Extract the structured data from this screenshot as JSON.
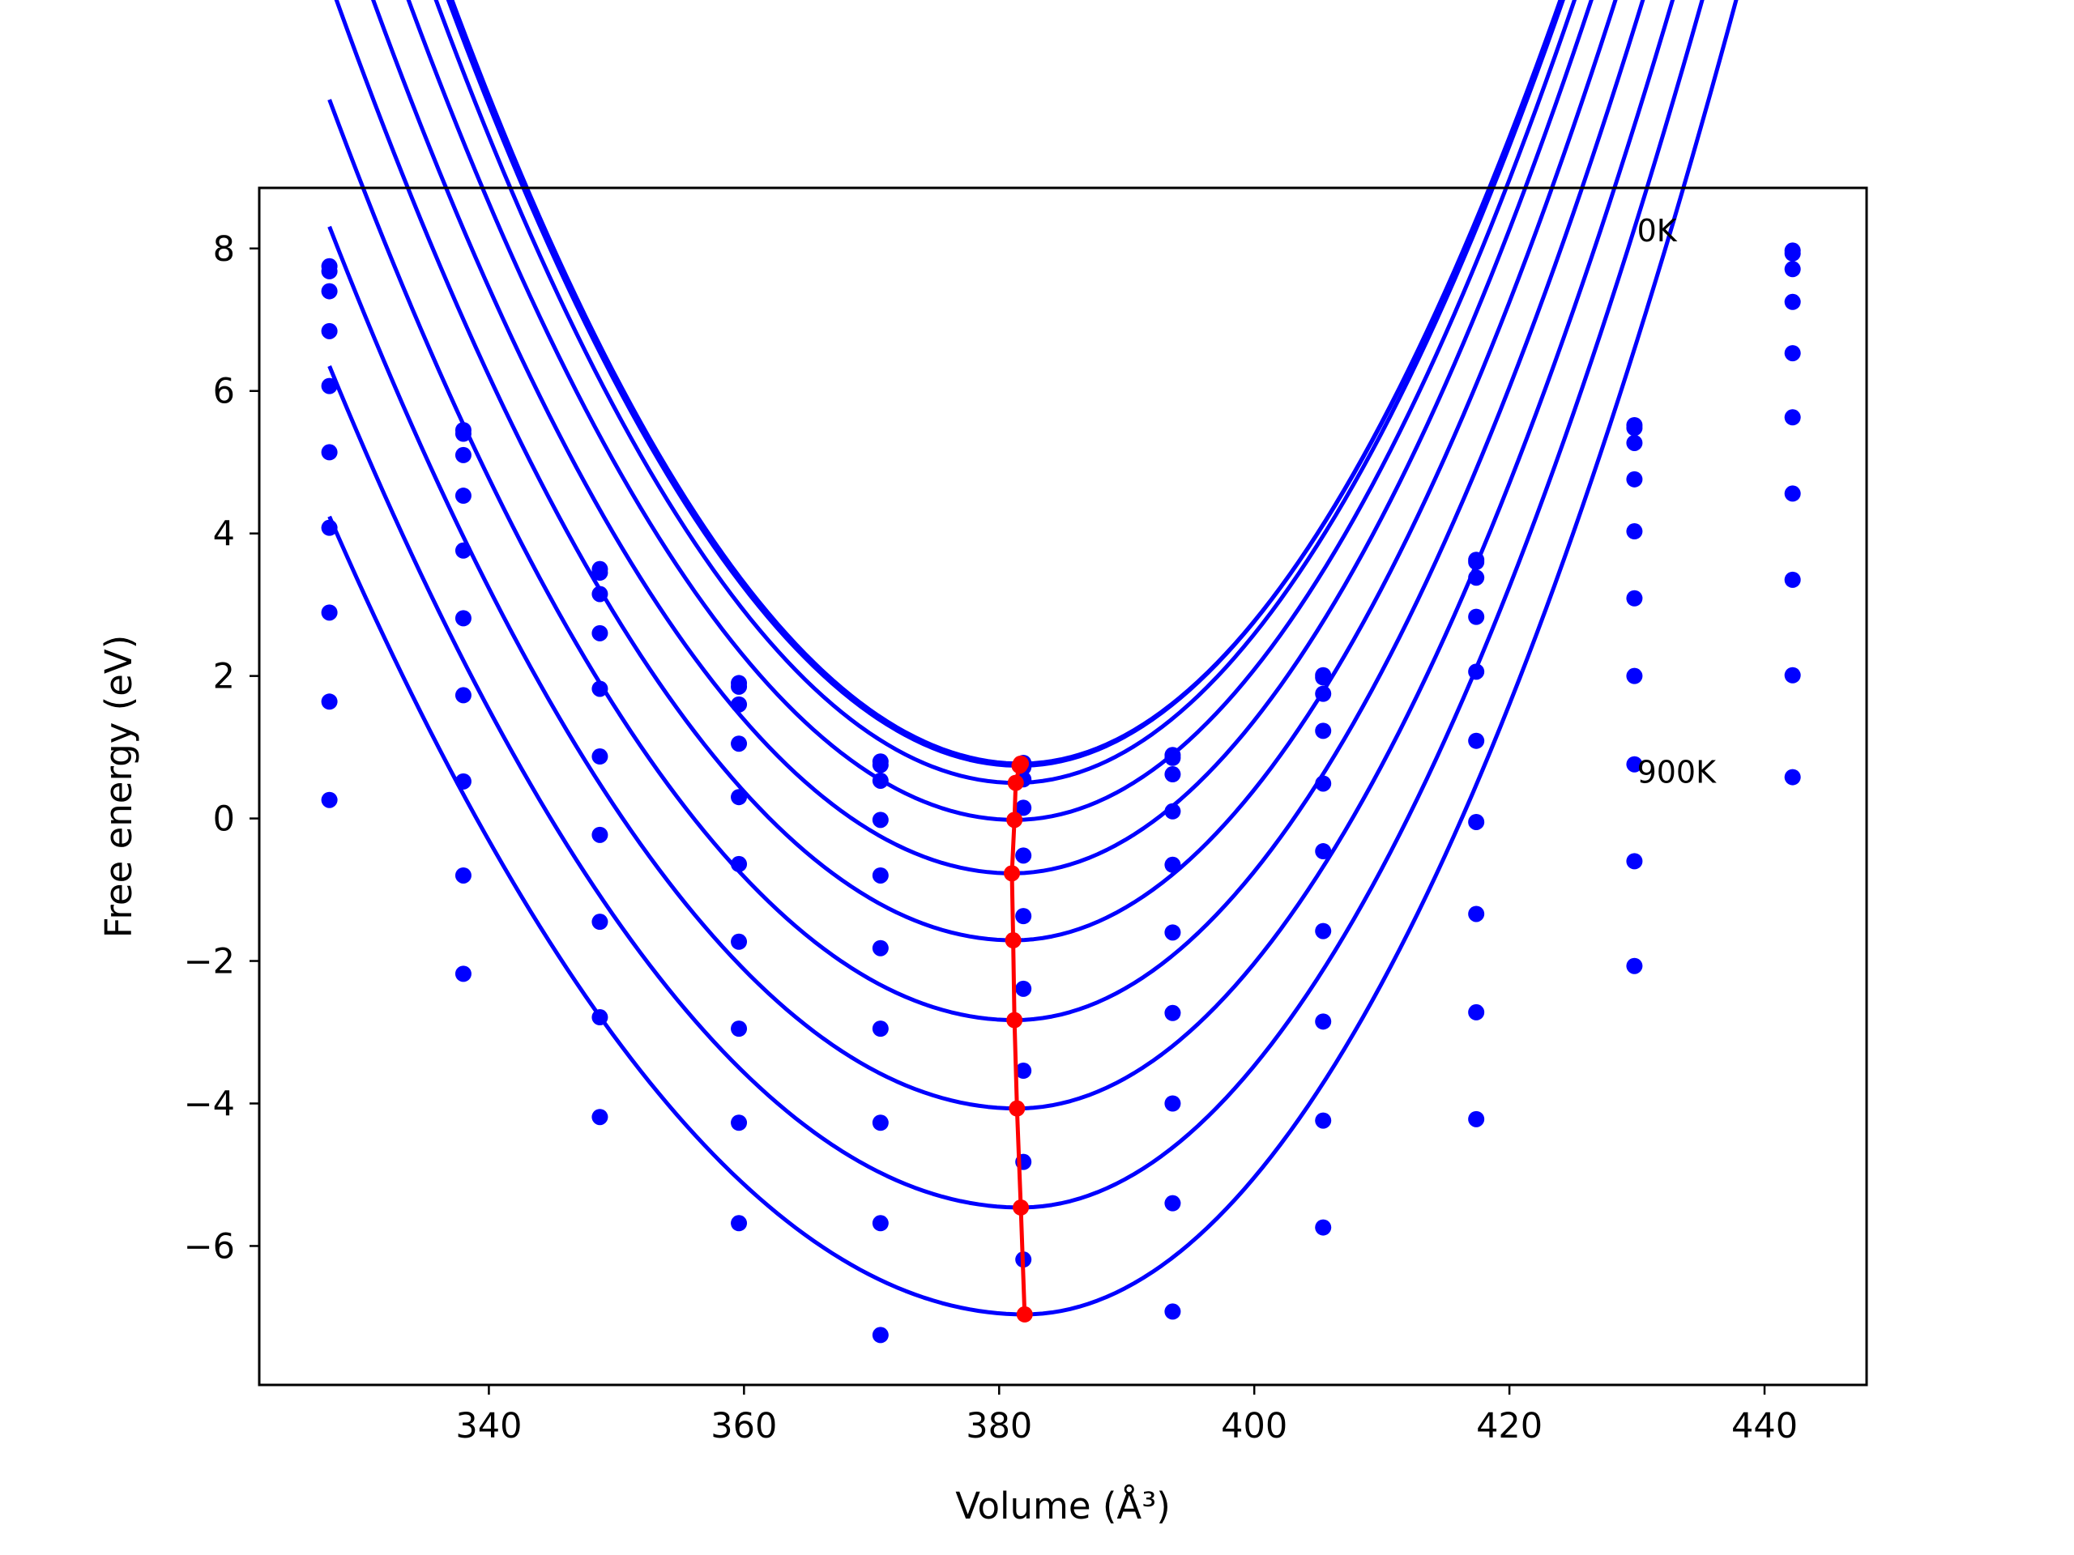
{
  "chart_data": {
    "type": "line",
    "xlabel": "Volume (Å³)",
    "ylabel": "Free energy (eV)",
    "xlim": [
      322,
      448
    ],
    "ylim": [
      -7.95,
      8.85
    ],
    "xticks": [
      340,
      360,
      380,
      400,
      420,
      440
    ],
    "yticks": [
      -6,
      -4,
      -2,
      0,
      2,
      4,
      6,
      8
    ],
    "xtick_labels": [
      "340",
      "360",
      "380",
      "400",
      "420",
      "440"
    ],
    "ytick_labels": [
      "−6",
      "−4",
      "−2",
      "0",
      "2",
      "4",
      "6",
      "8"
    ],
    "grid": false,
    "colors": {
      "curves": "#0000ff",
      "minima": "#ff0000",
      "frame": "#000000"
    },
    "annotations": [
      {
        "text": "0K",
        "x": 430.0,
        "y": 8.1
      },
      {
        "text": "900K",
        "x": 430.0,
        "y": 0.5
      }
    ],
    "volumes": [
      327.5,
      338.0,
      348.7,
      359.6,
      370.7,
      381.9,
      393.6,
      405.4,
      417.4,
      429.8,
      442.2
    ],
    "series": [
      {
        "points": [
          7.75,
          5.45,
          3.5,
          1.9,
          0.8,
          0.78,
          0.89,
          2.01,
          3.63,
          5.52,
          7.97
        ],
        "fit": {
          "vmin": 381.7,
          "fmin": 0.77,
          "a_left": 0.00539,
          "a_right": 0.00597
        }
      },
      {
        "points": [
          7.68,
          5.4,
          3.45,
          1.85,
          0.75,
          0.72,
          0.85,
          1.98,
          3.6,
          5.48,
          7.93
        ],
        "fit": {
          "vmin": 381.6,
          "fmin": 0.74,
          "a_left": 0.00536,
          "a_right": 0.00598
        }
      },
      {
        "points": [
          7.4,
          5.1,
          3.15,
          1.6,
          0.53,
          0.55,
          0.62,
          1.75,
          3.38,
          5.27,
          7.71
        ],
        "fit": {
          "vmin": 381.3,
          "fmin": 0.5,
          "a_left": 0.00532,
          "a_right": 0.00597
        }
      },
      {
        "points": [
          6.84,
          4.53,
          2.6,
          1.05,
          -0.02,
          0.15,
          0.1,
          1.23,
          2.83,
          4.76,
          7.25
        ],
        "fit": {
          "vmin": 381.2,
          "fmin": -0.02,
          "a_left": 0.0051,
          "a_right": 0.00597
        }
      },
      {
        "points": [
          6.07,
          3.76,
          1.82,
          0.3,
          -0.8,
          -0.52,
          -0.65,
          0.49,
          2.06,
          4.03,
          6.53
        ],
        "fit": {
          "vmin": 381.0,
          "fmin": -0.77,
          "a_left": 0.00489,
          "a_right": 0.00594
        }
      },
      {
        "points": [
          5.14,
          2.81,
          0.87,
          -0.64,
          -1.82,
          -1.37,
          -1.6,
          -0.46,
          1.09,
          3.09,
          5.63
        ],
        "fit": {
          "vmin": 381.1,
          "fmin": -1.71,
          "a_left": 0.00469,
          "a_right": 0.00592
        }
      },
      {
        "points": [
          4.08,
          1.73,
          -0.23,
          -1.73,
          -2.95,
          -2.39,
          -2.73,
          -1.58,
          -0.05,
          2.0,
          4.56
        ],
        "fit": {
          "vmin": 381.2,
          "fmin": -2.83,
          "a_left": 0.00448,
          "a_right": 0.0059
        }
      },
      {
        "points": [
          2.89,
          0.52,
          -1.45,
          -2.95,
          -4.27,
          -3.54,
          -4.0,
          -2.85,
          -1.34,
          0.76,
          3.35
        ],
        "fit": {
          "vmin": 381.4,
          "fmin": -4.07,
          "a_left": 0.00426,
          "a_right": 0.00589
        }
      },
      {
        "points": [
          1.64,
          -0.8,
          -2.79,
          -4.27,
          -5.68,
          -4.82,
          -5.4,
          -4.24,
          -2.72,
          -0.6,
          2.01
        ],
        "fit": {
          "vmin": 381.7,
          "fmin": -5.46,
          "a_left": 0.00402,
          "a_right": 0.00594
        }
      },
      {
        "points": [
          0.26,
          -2.18,
          -4.19,
          -5.68,
          -7.25,
          -6.19,
          -6.92,
          -5.74,
          -4.22,
          -2.07,
          0.58
        ],
        "fit": {
          "vmin": 382.0,
          "fmin": -6.96,
          "a_left": 0.00377,
          "a_right": 0.00593
        }
      }
    ],
    "minima": {
      "x": [
        381.7,
        381.6,
        381.3,
        381.2,
        381.0,
        381.1,
        381.2,
        381.4,
        381.7,
        382.0
      ],
      "y": [
        0.77,
        0.74,
        0.5,
        -0.02,
        -0.77,
        -1.71,
        -2.83,
        -4.07,
        -5.46,
        -6.96
      ]
    }
  }
}
